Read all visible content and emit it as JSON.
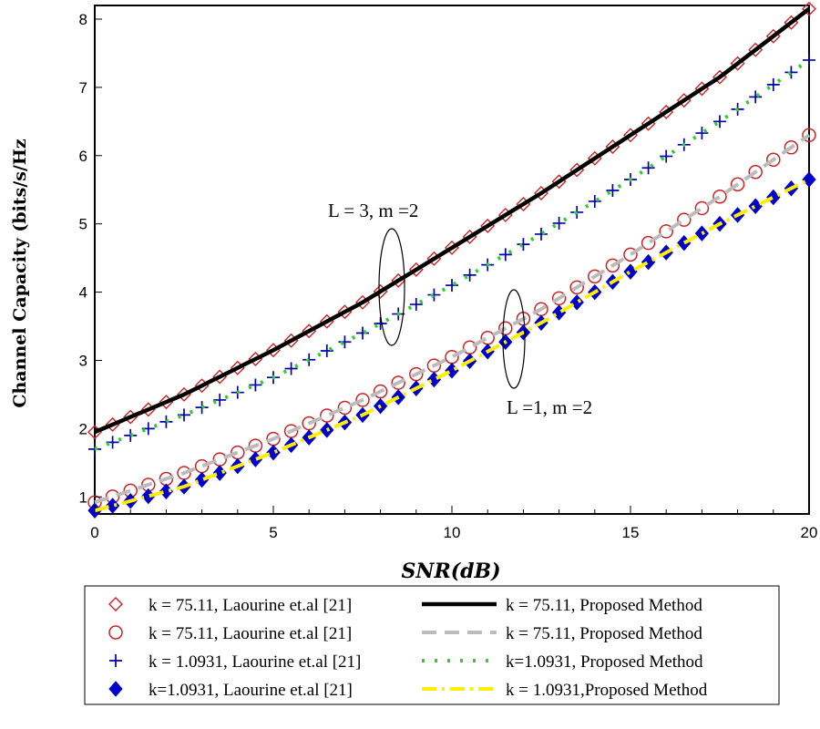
{
  "chart_data": {
    "type": "line",
    "title": "",
    "xlabel": "SNR(dB)",
    "ylabel": "Channel Capacity (bits/s/Hz",
    "xlim": [
      0,
      20
    ],
    "ylim": [
      0.75,
      8.2
    ],
    "grid": false,
    "x_ticks": [
      0,
      5,
      10,
      15,
      20
    ],
    "y_ticks": [
      1,
      2,
      3,
      4,
      5,
      6,
      7,
      8
    ],
    "x": [
      0,
      2.5,
      5,
      7.5,
      10,
      12.5,
      15,
      17.5,
      20
    ],
    "series": [
      {
        "name": "k = 75.11,  Laourine et.al [21]",
        "style": "markers",
        "marker": "diamond-open",
        "color": "#cc2222",
        "values": [
          1.95,
          2.5,
          3.15,
          3.85,
          4.65,
          5.45,
          6.3,
          7.15,
          8.15
        ]
      },
      {
        "name": "k = 75.11, Proposed Method",
        "style": "solid",
        "color": "#000000",
        "values": [
          1.95,
          2.5,
          3.15,
          3.85,
          4.65,
          5.45,
          6.3,
          7.15,
          8.15
        ]
      },
      {
        "name": "k = 75.11,  Laourine et.al [21]",
        "style": "markers",
        "marker": "circle-open",
        "color": "#cc2222",
        "values": [
          0.92,
          1.35,
          1.85,
          2.42,
          3.05,
          3.75,
          4.55,
          5.4,
          6.3
        ]
      },
      {
        "name": "k = 75.11, Proposed  Method",
        "style": "dash",
        "color": "#bbbbbb",
        "values": [
          0.92,
          1.35,
          1.85,
          2.42,
          3.05,
          3.75,
          4.55,
          5.4,
          6.3
        ]
      },
      {
        "name": "k = 1.0931,  Laourine et.al [21]",
        "style": "markers",
        "marker": "plus",
        "color": "#0000aa",
        "values": [
          1.7,
          2.2,
          2.75,
          3.4,
          4.1,
          4.85,
          5.65,
          6.5,
          7.4
        ]
      },
      {
        "name": "k=1.0931, Proposed Method",
        "style": "dot",
        "color": "#33cc33",
        "values": [
          1.7,
          2.2,
          2.75,
          3.4,
          4.1,
          4.85,
          5.65,
          6.5,
          7.4
        ]
      },
      {
        "name": "k=1.0931,  Laourine et.al [21]",
        "style": "markers",
        "marker": "diamond-filled",
        "color": "#0000cc",
        "values": [
          0.8,
          1.15,
          1.65,
          2.2,
          2.85,
          3.55,
          4.3,
          5.0,
          5.65
        ]
      },
      {
        "name": "k = 1.0931,Proposed Method",
        "style": "dashdot",
        "color": "#ffee00",
        "values": [
          0.8,
          1.15,
          1.65,
          2.2,
          2.85,
          3.55,
          4.3,
          5.0,
          5.65
        ]
      }
    ],
    "annotations": [
      {
        "text": "L = 3, m =2",
        "x": 8.5,
        "y": 5.25
      },
      {
        "text": "L =1, m =2",
        "x": 14.3,
        "y": 2.55
      }
    ],
    "legend": {
      "placement": "bottom",
      "left_labels": [
        "k = 75.11,  Laourine et.al [21]",
        "k = 75.11,  Laourine et.al [21]",
        "k = 1.0931,  Laourine et.al [21]",
        "k=1.0931,  Laourine et.al [21]"
      ],
      "right_labels": [
        "k = 75.11, Proposed Method",
        "k = 75.11, Proposed  Method",
        "k=1.0931, Proposed Method",
        "k = 1.0931,Proposed Method"
      ]
    }
  }
}
